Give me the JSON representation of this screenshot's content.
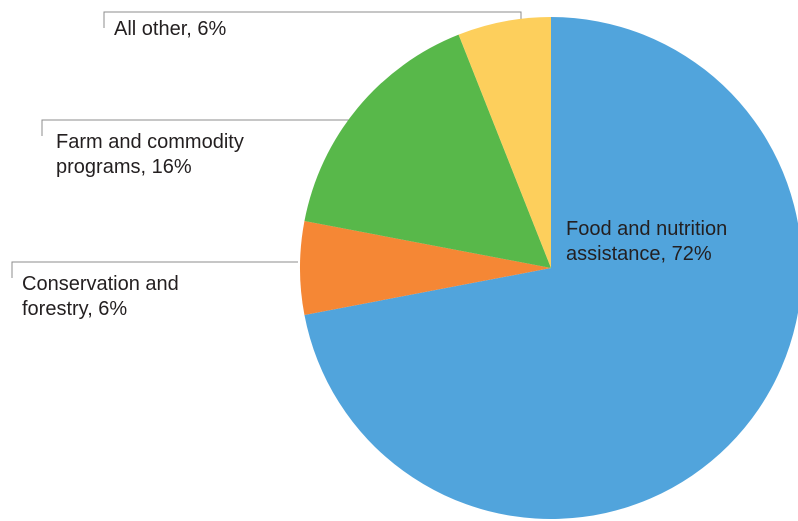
{
  "chart_data": {
    "type": "pie",
    "title": "",
    "slices": [
      {
        "label": "Food and nutrition assistance",
        "value": 72,
        "value_label": "72%",
        "label_lines": [
          "Food and nutrition",
          "assistance, 72%"
        ],
        "color": "#51a4dc"
      },
      {
        "label": "Conservation and forestry",
        "value": 6,
        "value_label": "6%",
        "label_lines": [
          "Conservation and",
          "forestry, 6%"
        ],
        "color": "#f58735"
      },
      {
        "label": "Farm and commodity programs",
        "value": 16,
        "value_label": "16%",
        "label_lines": [
          "Farm and commodity",
          "programs, 16%"
        ],
        "color": "#58b84a"
      },
      {
        "label": "All other",
        "value": 6,
        "value_label": "6%",
        "label_lines": [
          "All other, 6%"
        ],
        "color": "#fdcf5c"
      }
    ],
    "start_angle_deg": 0,
    "direction": "clockwise",
    "leader_line_color": "#8c8c8c"
  }
}
